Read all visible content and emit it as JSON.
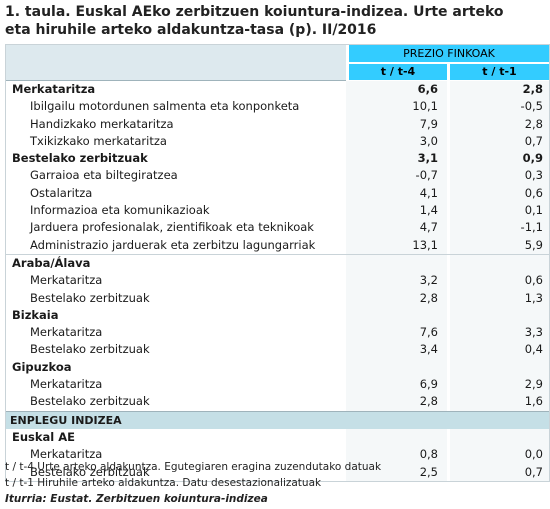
{
  "title": {
    "line1": "1. taula. Euskal AEko zerbitzuen koiuntura-indizea. Urte arteko",
    "line2": "eta hiruhile arteko aldakuntza-tasa (p). II/2016"
  },
  "header": {
    "group_label": "PREZIO FINKOAK",
    "col1": "t / t-4",
    "col2": "t / t-1"
  },
  "rows": [
    {
      "label": "Merkataritza",
      "v1": "6,6",
      "v2": "2,8",
      "style": "bold"
    },
    {
      "label": "Ibilgailu motordunen salmenta eta konponketa",
      "v1": "10,1",
      "v2": "-0,5",
      "style": "sub"
    },
    {
      "label": "Handizkako merkataritza",
      "v1": "7,9",
      "v2": "2,8",
      "style": "sub"
    },
    {
      "label": "Txikizkako merkataritza",
      "v1": "3,0",
      "v2": "0,7",
      "style": "sub"
    },
    {
      "label": "Bestelako zerbitzuak",
      "v1": "3,1",
      "v2": "0,9",
      "style": "bold"
    },
    {
      "label": "Garraioa eta biltegiratzea",
      "v1": "-0,7",
      "v2": "0,3",
      "style": "sub"
    },
    {
      "label": "Ostalaritza",
      "v1": "4,1",
      "v2": "0,6",
      "style": "sub"
    },
    {
      "label": "Informazioa eta komunikazioak",
      "v1": "1,4",
      "v2": "0,1",
      "style": "sub"
    },
    {
      "label": "Jarduera profesionalak, zientifikoak eta teknikoak",
      "v1": "4,7",
      "v2": "-1,1",
      "style": "sub"
    },
    {
      "label": "Administrazio jarduerak eta zerbitzu lagungarriak",
      "v1": "13,1",
      "v2": "5,9",
      "style": "sub"
    },
    {
      "label": "Araba/Álava",
      "v1": "",
      "v2": "",
      "style": "bold divider"
    },
    {
      "label": "Merkataritza",
      "v1": "3,2",
      "v2": "0,6",
      "style": "sub"
    },
    {
      "label": "Bestelako zerbitzuak",
      "v1": "2,8",
      "v2": "1,3",
      "style": "sub"
    },
    {
      "label": "Bizkaia",
      "v1": "",
      "v2": "",
      "style": "bold"
    },
    {
      "label": "Merkataritza",
      "v1": "7,6",
      "v2": "3,3",
      "style": "sub"
    },
    {
      "label": "Bestelako zerbitzuak",
      "v1": "3,4",
      "v2": "0,4",
      "style": "sub"
    },
    {
      "label": "Gipuzkoa",
      "v1": "",
      "v2": "",
      "style": "bold"
    },
    {
      "label": "Merkataritza",
      "v1": "6,9",
      "v2": "2,9",
      "style": "sub"
    },
    {
      "label": "Bestelako zerbitzuak",
      "v1": "2,8",
      "v2": "1,6",
      "style": "sub"
    },
    {
      "label": "ENPLEGU INDIZEA",
      "v1": "",
      "v2": "",
      "style": "band"
    },
    {
      "label": "Euskal AE",
      "v1": "",
      "v2": "",
      "style": "bold"
    },
    {
      "label": "Merkataritza",
      "v1": "0,8",
      "v2": "0,0",
      "style": "sub"
    },
    {
      "label": "Bestelako zerbitzuak",
      "v1": "2,5",
      "v2": "0,7",
      "style": "sub"
    }
  ],
  "footnotes": {
    "note1": "t / t-4 Urte arteko aldakuntza. Egutegiaren eragina zuzendutako datuak",
    "note2": "t / t-1 Hiruhile arteko aldakuntza. Datu desestazionalizatuak",
    "source": "Iturria: Eustat. Zerbitzuen koiuntura-indizea"
  },
  "colors": {
    "header_accent": "#33ccff",
    "band": "#c5dfe6",
    "header_left": "#dde9ee"
  }
}
